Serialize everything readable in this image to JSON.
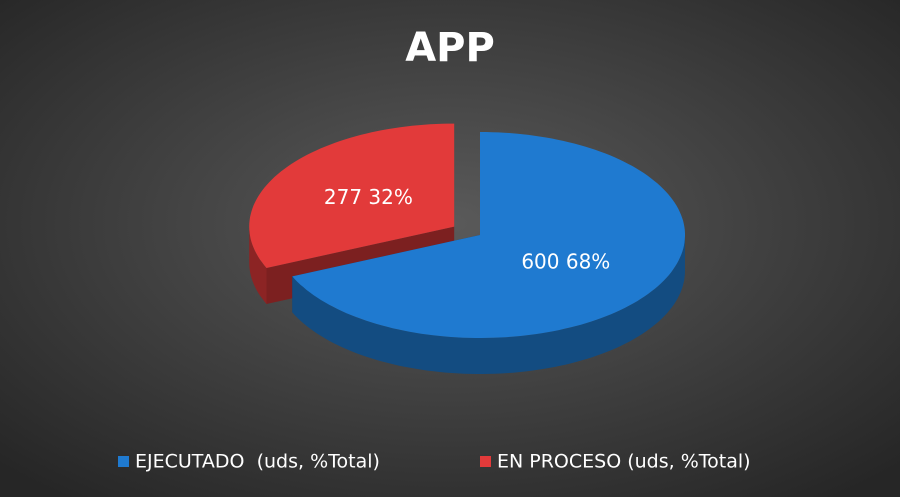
{
  "chart_data": {
    "type": "pie3d",
    "title": "APP",
    "categories": [
      "EJECUTADO  (uds, %Total)",
      "EN PROCESO (uds, %Total)"
    ],
    "values": [
      600,
      277
    ],
    "value_labels": [
      "600 68%",
      "277 32%"
    ],
    "colors": [
      "#1f7ad0",
      "#e23a3a"
    ],
    "legend": "bottom"
  }
}
